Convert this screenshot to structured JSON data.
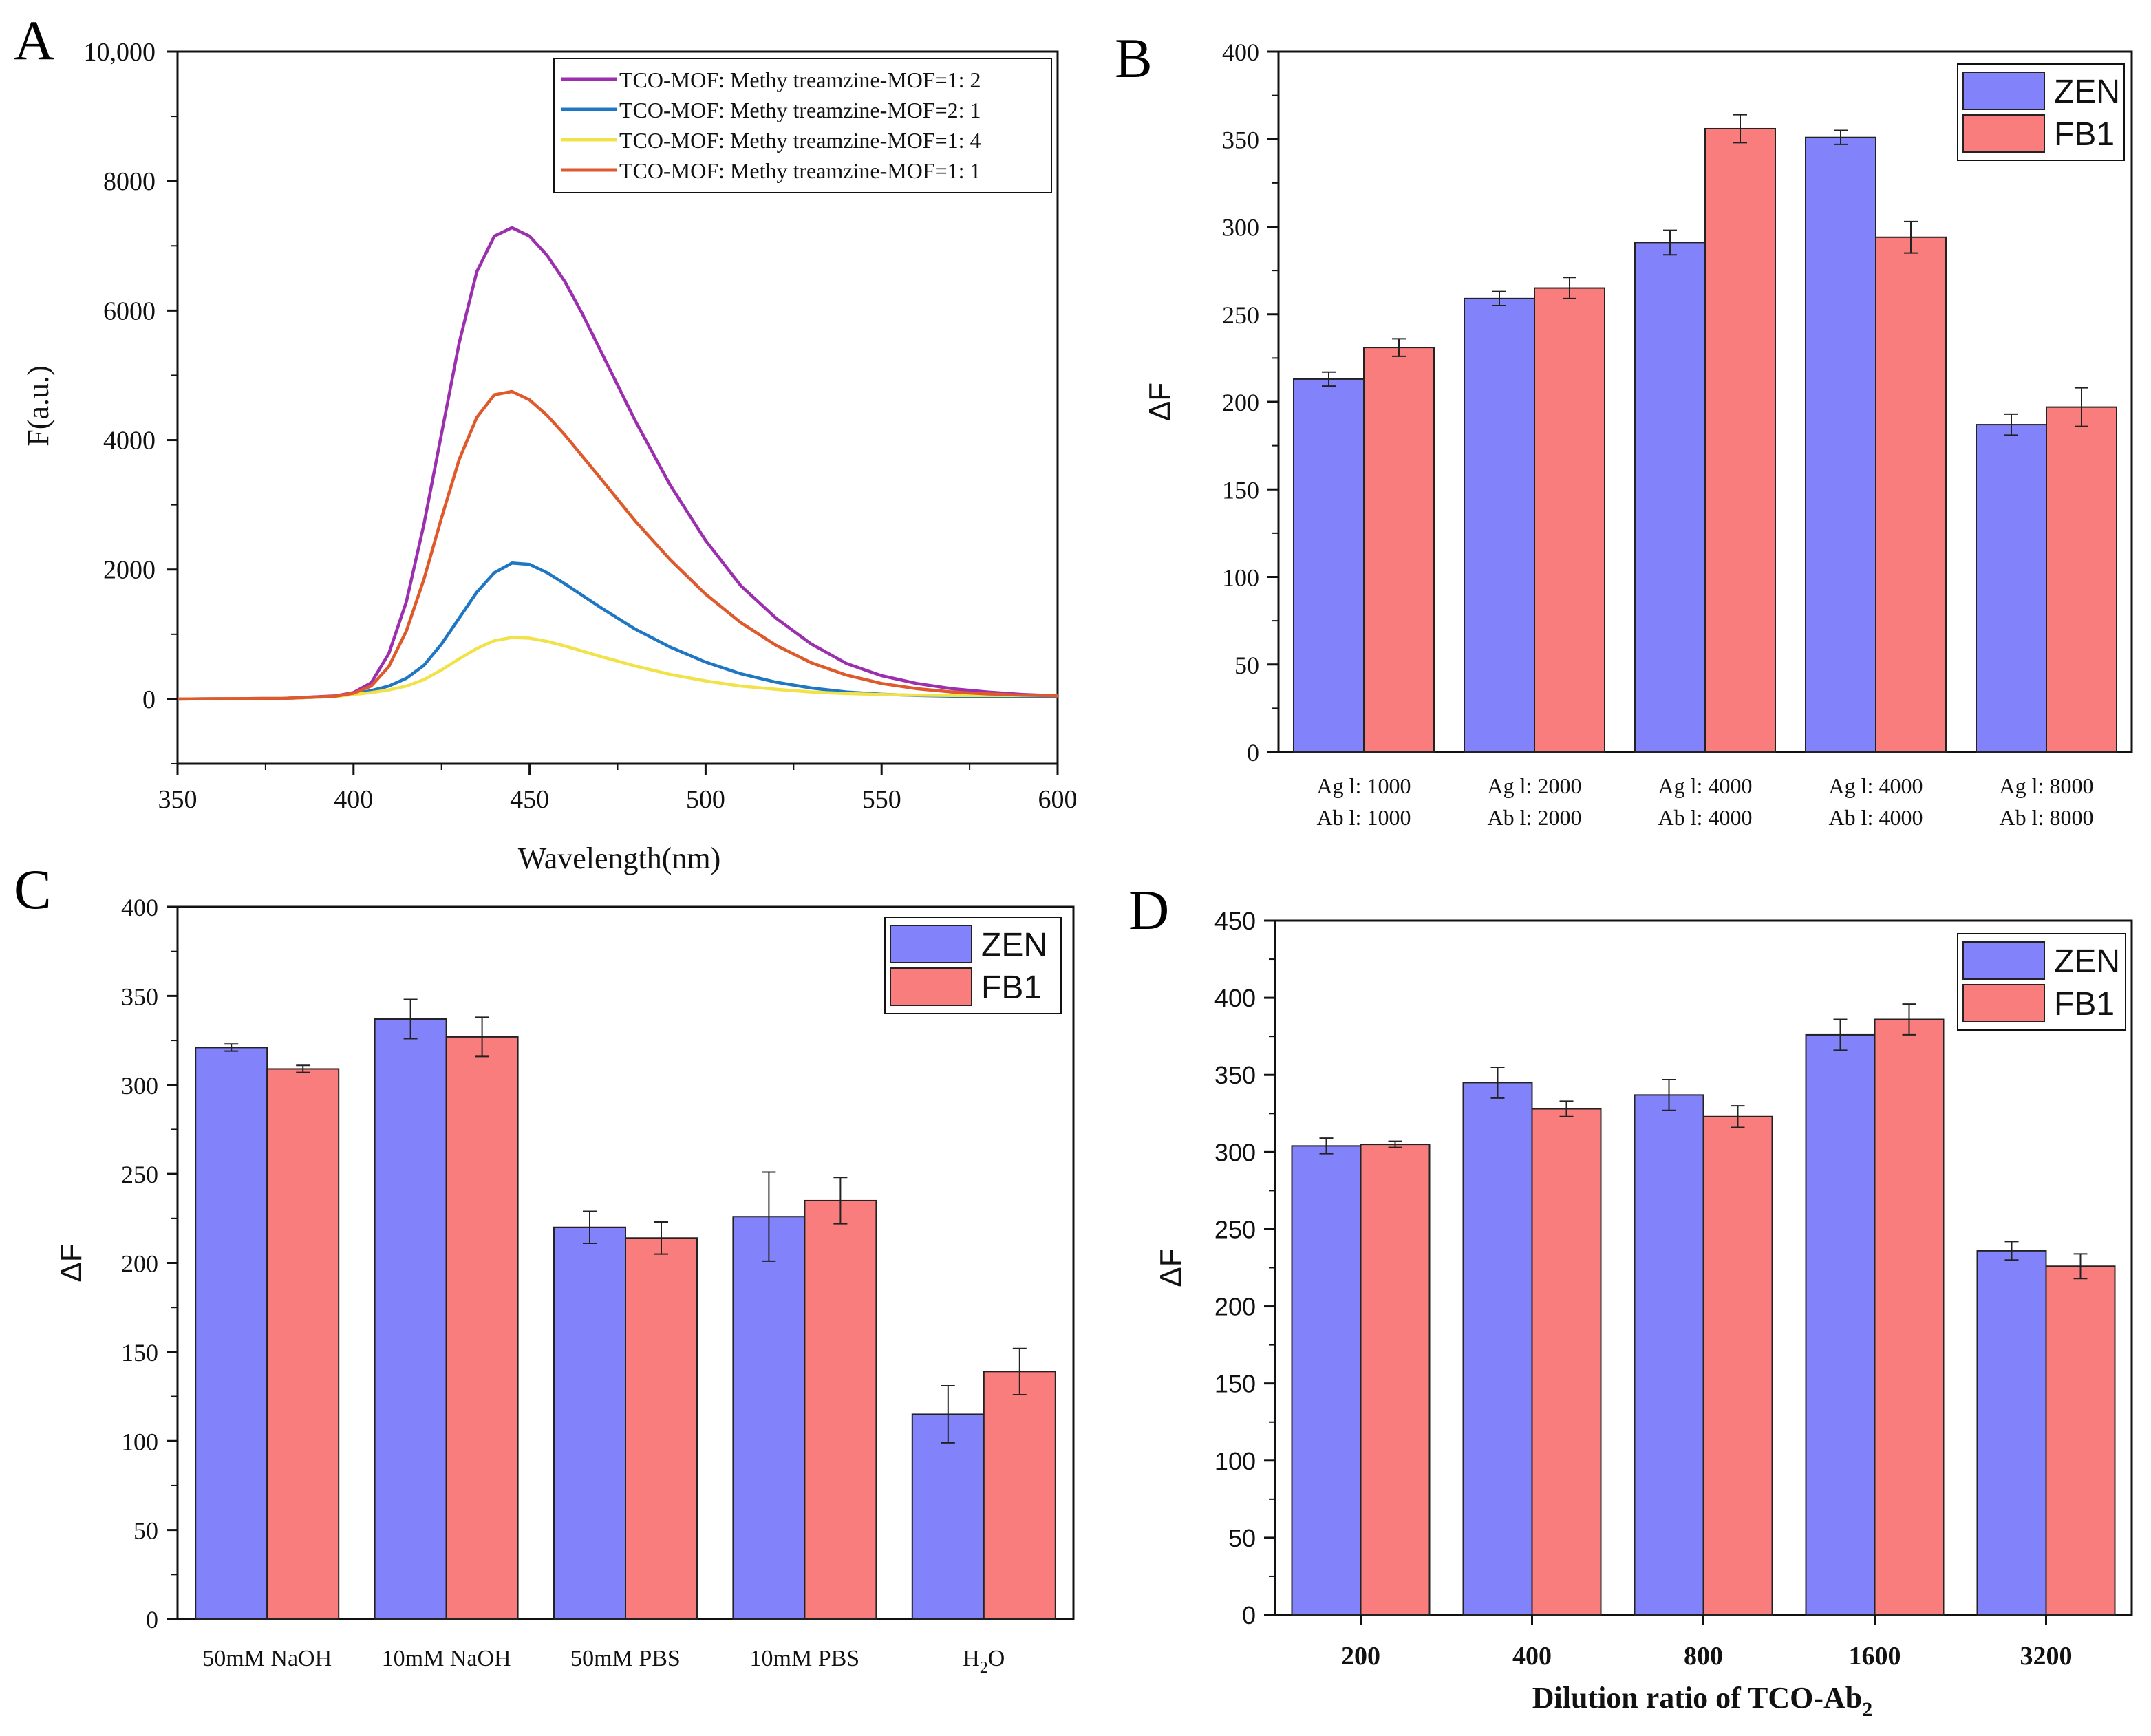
{
  "colors": {
    "zen": "#8282fa",
    "fb1": "#fa7d7d",
    "purple": "#9b2fae",
    "blue": "#1f77c4",
    "yellow": "#f2e24a",
    "orange": "#de5a2c"
  },
  "chart_data": [
    {
      "panel": "A",
      "type": "line",
      "xlabel": "Wavelength(nm)",
      "ylabel": "F(a.u.)",
      "xlim": [
        350,
        600
      ],
      "ylim": [
        -1000,
        10000
      ],
      "xticks": [
        350,
        400,
        450,
        500,
        550,
        600
      ],
      "yticks": [
        0,
        2000,
        4000,
        6000,
        8000,
        10000
      ],
      "ytick_labels": [
        "0",
        "2000",
        "4000",
        "6000",
        "8000",
        "10,000"
      ],
      "series": [
        {
          "name": "TCO-MOF:  Methy treamzine-MOF=1:  2",
          "color_key": "purple",
          "x": [
            350,
            380,
            395,
            400,
            405,
            410,
            415,
            420,
            425,
            430,
            435,
            440,
            445,
            450,
            455,
            460,
            465,
            470,
            480,
            490,
            500,
            510,
            520,
            530,
            540,
            550,
            560,
            570,
            580,
            590,
            600
          ],
          "y": [
            0,
            10,
            50,
            100,
            250,
            700,
            1500,
            2700,
            4100,
            5500,
            6600,
            7150,
            7280,
            7150,
            6850,
            6450,
            5950,
            5400,
            4300,
            3300,
            2450,
            1750,
            1250,
            850,
            550,
            360,
            240,
            160,
            110,
            70,
            50
          ]
        },
        {
          "name": "TCO-MOF:  Methy treamzine-MOF=2:  1",
          "color_key": "blue",
          "x": [
            350,
            380,
            395,
            400,
            405,
            410,
            415,
            420,
            425,
            430,
            435,
            440,
            445,
            450,
            455,
            460,
            465,
            470,
            480,
            490,
            500,
            510,
            520,
            530,
            540,
            550,
            560,
            570,
            580,
            590,
            600
          ],
          "y": [
            0,
            10,
            40,
            80,
            130,
            200,
            320,
            520,
            850,
            1250,
            1650,
            1950,
            2100,
            2080,
            1950,
            1780,
            1600,
            1420,
            1080,
            800,
            570,
            390,
            260,
            170,
            110,
            75,
            55,
            45,
            40,
            40,
            40
          ]
        },
        {
          "name": "TCO-MOF:  Methy treamzine-MOF=1:  4",
          "color_key": "yellow",
          "x": [
            350,
            380,
            395,
            400,
            405,
            410,
            415,
            420,
            425,
            430,
            435,
            440,
            445,
            450,
            455,
            460,
            465,
            470,
            480,
            490,
            500,
            510,
            520,
            530,
            540,
            550,
            560,
            570,
            580,
            590,
            600
          ],
          "y": [
            0,
            10,
            40,
            70,
            100,
            140,
            200,
            300,
            450,
            620,
            780,
            900,
            950,
            940,
            890,
            820,
            740,
            660,
            510,
            380,
            280,
            200,
            150,
            110,
            85,
            70,
            60,
            55,
            55,
            55,
            55
          ]
        },
        {
          "name": "TCO-MOF:  Methy treamzine-MOF=1:  1",
          "color_key": "orange",
          "x": [
            350,
            380,
            395,
            400,
            405,
            410,
            415,
            420,
            425,
            430,
            435,
            440,
            445,
            450,
            455,
            460,
            465,
            470,
            480,
            490,
            500,
            510,
            520,
            530,
            540,
            550,
            560,
            570,
            580,
            590,
            600
          ],
          "y": [
            0,
            10,
            45,
            90,
            200,
            500,
            1050,
            1850,
            2800,
            3700,
            4350,
            4700,
            4750,
            4620,
            4380,
            4080,
            3750,
            3420,
            2750,
            2150,
            1620,
            1180,
            830,
            560,
            370,
            240,
            160,
            110,
            80,
            60,
            50
          ]
        }
      ]
    },
    {
      "panel": "B",
      "type": "bar",
      "xlabel": "",
      "ylabel": "ΔF",
      "ylim": [
        0,
        400
      ],
      "yticks": [
        0,
        50,
        100,
        150,
        200,
        250,
        300,
        350,
        400
      ],
      "categories": [
        [
          "Ag l:  1000",
          "Ab l:  1000"
        ],
        [
          "Ag l:  2000",
          "Ab l:  2000"
        ],
        [
          "Ag l:  4000",
          "Ab l:  4000"
        ],
        [
          "Ag l:  4000",
          "Ab l:  4000"
        ],
        [
          "Ag l:  8000",
          "Ab l:  8000"
        ]
      ],
      "series": [
        {
          "name": "ZEN",
          "color_key": "zen",
          "values": [
            213,
            259,
            291,
            351,
            187
          ],
          "errors": [
            4,
            4,
            7,
            4,
            6
          ]
        },
        {
          "name": "FB1",
          "color_key": "fb1",
          "values": [
            231,
            265,
            356,
            294,
            197
          ],
          "errors": [
            5,
            6,
            8,
            9,
            11
          ]
        }
      ],
      "legend": "top-right"
    },
    {
      "panel": "C",
      "type": "bar",
      "xlabel": "",
      "ylabel": "ΔF",
      "ylim": [
        0,
        400
      ],
      "yticks": [
        0,
        50,
        100,
        150,
        200,
        250,
        300,
        350,
        400
      ],
      "categories": [
        "50mM NaOH",
        "10mM  NaOH",
        "50mM PBS",
        "10mM PBS",
        "H2O"
      ],
      "category_display": [
        {
          "text": "50mM  NaOH"
        },
        {
          "text": "10mM   NaOH"
        },
        {
          "text": "50mM PBS"
        },
        {
          "text": "10mM PBS"
        },
        {
          "text": "H",
          "sub": "2",
          "after": "O"
        }
      ],
      "series": [
        {
          "name": "ZEN",
          "color_key": "zen",
          "values": [
            321,
            337,
            220,
            226,
            115
          ],
          "errors": [
            2,
            11,
            9,
            25,
            16
          ]
        },
        {
          "name": "FB1",
          "color_key": "fb1",
          "values": [
            309,
            327,
            214,
            235,
            139
          ],
          "errors": [
            2,
            11,
            9,
            13,
            13
          ]
        }
      ],
      "legend": "top-right"
    },
    {
      "panel": "D",
      "type": "bar",
      "xlabel": "Dilution ratio of TCO-Ab2",
      "xlabel_display": {
        "text": "Dilution ratio of TCO-Ab",
        "sub": "2"
      },
      "ylabel": "ΔF",
      "ylim": [
        0,
        450
      ],
      "yticks": [
        0,
        50,
        100,
        150,
        200,
        250,
        300,
        350,
        400,
        450
      ],
      "categories": [
        "200",
        "400",
        "800",
        "1600",
        "3200"
      ],
      "series": [
        {
          "name": "ZEN",
          "color_key": "zen",
          "values": [
            304,
            345,
            337,
            376,
            236
          ],
          "errors": [
            5,
            10,
            10,
            10,
            6
          ]
        },
        {
          "name": "FB1",
          "color_key": "fb1",
          "values": [
            305,
            328,
            323,
            386,
            226
          ],
          "errors": [
            2,
            5,
            7,
            10,
            8
          ]
        }
      ],
      "legend": "top-right"
    }
  ],
  "panel_labels": [
    "A",
    "B",
    "C",
    "D"
  ]
}
